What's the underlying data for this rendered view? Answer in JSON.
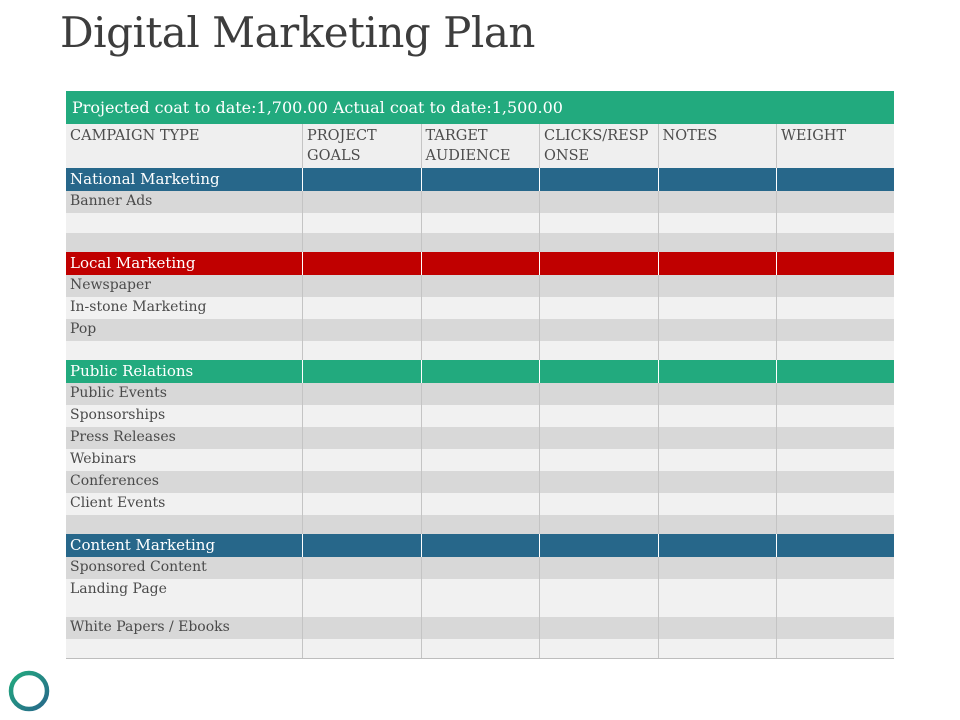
{
  "title": "Digital Marketing Plan",
  "summary": "Projected coat to date:1,700.00 Actual coat to date:1,500.00",
  "columns": [
    "CAMPAIGN TYPE",
    "PROJECT GOALS",
    "TARGET AUDIENCE",
    "CLICKS/RESP ONSE",
    "NOTES",
    "WEIGHT"
  ],
  "sections": [
    {
      "name": "National Marketing",
      "color": "#27678a",
      "items": [
        "Banner Ads",
        "",
        ""
      ]
    },
    {
      "name": "Local Marketing",
      "color": "#c00000",
      "items": [
        "Newspaper",
        "In-stone Marketing",
        "Pop",
        ""
      ]
    },
    {
      "name": "Public Relations",
      "color": "#22aa7e",
      "items": [
        "Public Events",
        "Sponsorships",
        "Press Releases",
        "Webinars",
        "Conferences",
        "Client Events",
        ""
      ]
    },
    {
      "name": "Content Marketing",
      "color": "#27678a",
      "items": [
        "Sponsored Content",
        "Landing Page",
        "White Papers / Ebooks",
        ""
      ]
    }
  ],
  "icons": {
    "logo": "ring-logo-icon"
  },
  "colors": {
    "green": "#22aa7e",
    "blue": "#27678a",
    "red": "#c00000"
  }
}
